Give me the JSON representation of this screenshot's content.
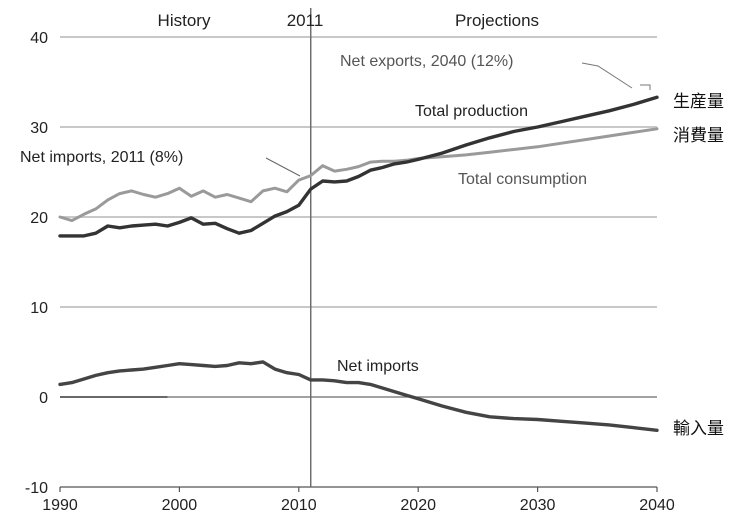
{
  "chart_data": {
    "type": "line",
    "title": "",
    "xlabel": "",
    "ylabel": "",
    "xlim": [
      1990,
      2040
    ],
    "ylim": [
      -10,
      40
    ],
    "xticks": [
      1990,
      2000,
      2010,
      2020,
      2030,
      2040
    ],
    "yticks": [
      -10,
      0,
      10,
      20,
      30,
      40
    ],
    "grid": true,
    "divider_year": 2011,
    "region_labels": {
      "history": "History",
      "divider": "2011",
      "projections": "Projections"
    },
    "annotations": {
      "net_exports_2040": "Net exports, 2040 (12%)",
      "total_production": "Total production",
      "net_imports_2011": "Net imports, 2011 (8%)",
      "total_consumption": "Total consumption",
      "net_imports": "Net imports"
    },
    "side_labels": {
      "production": "生産量",
      "consumption": "消費量",
      "imports": "輸入量"
    },
    "series": [
      {
        "key": "consumption",
        "color": "#9a9a9a",
        "x": [
          1990,
          1991,
          1992,
          1993,
          1994,
          1995,
          1996,
          1997,
          1998,
          1999,
          2000,
          2001,
          2002,
          2003,
          2004,
          2005,
          2006,
          2007,
          2008,
          2009,
          2010,
          2011,
          2012,
          2013,
          2014,
          2015,
          2016,
          2017,
          2018,
          2019,
          2020,
          2022,
          2024,
          2026,
          2028,
          2030,
          2032,
          2034,
          2036,
          2038,
          2040
        ],
        "values": [
          20,
          19.6,
          20.3,
          20.9,
          21.9,
          22.6,
          22.9,
          22.5,
          22.2,
          22.6,
          23.2,
          22.3,
          22.9,
          22.2,
          22.5,
          22.1,
          21.7,
          22.9,
          23.2,
          22.8,
          24.1,
          24.6,
          25.7,
          25.1,
          25.3,
          25.6,
          26.1,
          26.2,
          26.2,
          26.3,
          26.5,
          26.7,
          26.9,
          27.2,
          27.5,
          27.8,
          28.2,
          28.6,
          29.0,
          29.4,
          29.8
        ]
      },
      {
        "key": "production",
        "color": "#333333",
        "x": [
          1990,
          1991,
          1992,
          1993,
          1994,
          1995,
          1996,
          1997,
          1998,
          1999,
          2000,
          2001,
          2002,
          2003,
          2004,
          2005,
          2006,
          2007,
          2008,
          2009,
          2010,
          2011,
          2012,
          2013,
          2014,
          2015,
          2016,
          2017,
          2018,
          2019,
          2020,
          2022,
          2024,
          2026,
          2028,
          2030,
          2032,
          2034,
          2036,
          2038,
          2040
        ],
        "values": [
          17.9,
          17.9,
          17.9,
          18.2,
          19.0,
          18.8,
          19.0,
          19.1,
          19.2,
          19.0,
          19.4,
          19.9,
          19.2,
          19.3,
          18.7,
          18.2,
          18.5,
          19.3,
          20.1,
          20.6,
          21.3,
          23.1,
          24.0,
          23.9,
          24.0,
          24.5,
          25.2,
          25.5,
          25.9,
          26.1,
          26.4,
          27.1,
          28.0,
          28.8,
          29.5,
          30.0,
          30.6,
          31.2,
          31.8,
          32.5,
          33.3
        ]
      },
      {
        "key": "net_imports",
        "color": "#444444",
        "x": [
          1990,
          1991,
          1992,
          1993,
          1994,
          1995,
          1996,
          1997,
          1998,
          1999,
          2000,
          2001,
          2002,
          2003,
          2004,
          2005,
          2006,
          2007,
          2008,
          2009,
          2010,
          2011,
          2012,
          2013,
          2014,
          2015,
          2016,
          2017,
          2018,
          2019,
          2020,
          2022,
          2024,
          2026,
          2028,
          2030,
          2032,
          2034,
          2036,
          2038,
          2040
        ],
        "values": [
          1.4,
          1.6,
          2.0,
          2.4,
          2.7,
          2.9,
          3.0,
          3.1,
          3.3,
          3.5,
          3.7,
          3.6,
          3.5,
          3.4,
          3.5,
          3.8,
          3.7,
          3.9,
          3.1,
          2.7,
          2.5,
          1.9,
          1.9,
          1.8,
          1.6,
          1.6,
          1.4,
          1.0,
          0.6,
          0.2,
          -0.2,
          -1.0,
          -1.7,
          -2.2,
          -2.4,
          -2.5,
          -2.7,
          -2.9,
          -3.1,
          -3.4,
          -3.7
        ]
      }
    ]
  }
}
